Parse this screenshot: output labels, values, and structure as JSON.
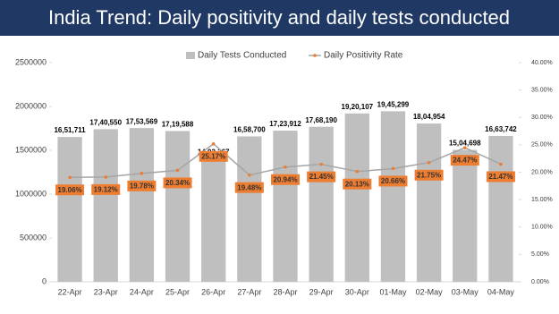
{
  "chart_data": {
    "type": "bar-line",
    "title": "India Trend: Daily positivity and daily tests conducted",
    "categories": [
      "22-Apr",
      "23-Apr",
      "24-Apr",
      "25-Apr",
      "26-Apr",
      "27-Apr",
      "28-Apr",
      "29-Apr",
      "30-Apr",
      "01-May",
      "02-May",
      "03-May",
      "04-May"
    ],
    "series": [
      {
        "name": "Daily Tests Conducted",
        "type": "bar",
        "color": "#bfbfbf",
        "axis": "y",
        "values": [
          1651711,
          1740550,
          1753569,
          1719588,
          1402367,
          1658700,
          1723912,
          1768190,
          1920107,
          1945299,
          1804954,
          1504698,
          1663742
        ],
        "value_labels": [
          "16,51,711",
          "17,40,550",
          "17,53,569",
          "17,19,588",
          "14,02,367",
          "16,58,700",
          "17,23,912",
          "17,68,190",
          "19,20,107",
          "19,45,299",
          "18,04,954",
          "15,04,698",
          "16,63,742"
        ]
      },
      {
        "name": "Daily Positivity Rate",
        "type": "line",
        "color": "#a5a5a5",
        "marker_color": "#ed7d31",
        "axis": "y2",
        "values": [
          19.06,
          19.12,
          19.78,
          20.34,
          25.17,
          19.48,
          20.94,
          21.45,
          20.13,
          20.66,
          21.75,
          24.47,
          21.47
        ],
        "value_labels": [
          "19.06%",
          "19.12%",
          "19.78%",
          "20.34%",
          "25.17%",
          "19.48%",
          "20.94%",
          "21.45%",
          "20.13%",
          "20.66%",
          "21.75%",
          "24.47%",
          "21.47%"
        ]
      }
    ],
    "ylim": [
      0,
      2500000
    ],
    "yticks": [
      0,
      500000,
      1000000,
      1500000,
      2000000,
      2500000
    ],
    "y2lim": [
      0,
      40
    ],
    "y2ticks": [
      {
        "value": 0,
        "label": "0.00%"
      },
      {
        "value": 5,
        "label": "5.00%"
      },
      {
        "value": 10,
        "label": "10.00%"
      },
      {
        "value": 15,
        "label": "15.00%"
      },
      {
        "value": 20,
        "label": "20.00%"
      },
      {
        "value": 25,
        "label": "25.00%"
      },
      {
        "value": 30,
        "label": "30.00%"
      },
      {
        "value": 35,
        "label": "35.00%"
      },
      {
        "value": 40,
        "label": "40.00%"
      }
    ]
  }
}
